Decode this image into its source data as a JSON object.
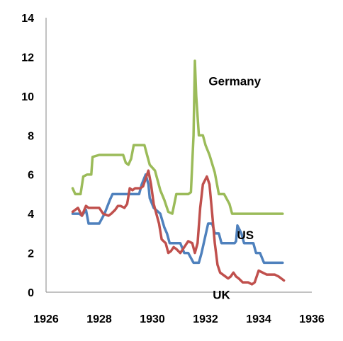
{
  "chart_data": {
    "type": "line",
    "title": "",
    "xlabel": "",
    "ylabel": "",
    "xlim": [
      1926,
      1936
    ],
    "ylim": [
      0,
      14
    ],
    "x_ticks": [
      "1926",
      "1928",
      "1930",
      "1932",
      "1934",
      "1936"
    ],
    "y_ticks": [
      "0",
      "2",
      "4",
      "6",
      "8",
      "10",
      "12",
      "14"
    ],
    "grid": false,
    "legend": "none",
    "series": [
      {
        "name": "Germany",
        "color": "#9BBB59",
        "x": [
          1927.0,
          1927.1,
          1927.3,
          1927.4,
          1927.55,
          1927.7,
          1927.75,
          1928.0,
          1928.9,
          1929.0,
          1929.1,
          1929.2,
          1929.3,
          1929.6,
          1929.7,
          1929.8,
          1929.9,
          1930.1,
          1930.3,
          1930.45,
          1930.6,
          1930.75,
          1930.9,
          1931.35,
          1931.45,
          1931.55,
          1931.6,
          1931.65,
          1931.75,
          1931.9,
          1932.0,
          1932.15,
          1932.35,
          1932.5,
          1932.7,
          1932.9,
          1933.0,
          1934.9
        ],
        "values": [
          5.3,
          5.0,
          5.0,
          5.9,
          6.0,
          6.0,
          6.9,
          7.0,
          7.0,
          6.6,
          6.5,
          6.8,
          7.5,
          7.5,
          7.5,
          7.0,
          6.5,
          6.2,
          5.2,
          4.7,
          4.1,
          4.0,
          5.0,
          5.0,
          5.1,
          8.0,
          11.8,
          10.0,
          8.0,
          8.0,
          7.5,
          7.0,
          6.1,
          5.0,
          5.0,
          4.5,
          4.0,
          4.0
        ]
      },
      {
        "name": "US",
        "color": "#4F81BD",
        "x": [
          1927.0,
          1927.25,
          1927.35,
          1927.5,
          1927.6,
          1927.9,
          1928.0,
          1928.2,
          1928.4,
          1928.5,
          1929.35,
          1929.5,
          1929.6,
          1929.75,
          1929.85,
          1929.9,
          1930.05,
          1930.3,
          1930.45,
          1930.55,
          1930.65,
          1930.8,
          1931.05,
          1931.2,
          1931.35,
          1931.55,
          1931.65,
          1931.75,
          1931.85,
          1932.1,
          1932.25,
          1932.35,
          1932.5,
          1932.6,
          1933.1,
          1933.15,
          1933.2,
          1933.35,
          1933.45,
          1933.6,
          1933.8,
          1933.9,
          1934.05,
          1934.2,
          1934.9
        ],
        "values": [
          4.0,
          4.0,
          3.9,
          4.2,
          3.5,
          3.5,
          3.5,
          4.0,
          4.7,
          5.0,
          5.0,
          5.0,
          5.5,
          6.0,
          5.5,
          4.8,
          4.3,
          4.0,
          3.3,
          3.0,
          2.5,
          2.5,
          2.5,
          2.0,
          2.0,
          1.5,
          1.5,
          1.5,
          2.0,
          3.5,
          3.5,
          3.0,
          3.0,
          2.5,
          2.5,
          2.6,
          3.4,
          3.0,
          2.5,
          2.5,
          2.5,
          2.0,
          2.0,
          1.5,
          1.5
        ]
      },
      {
        "name": "UK",
        "color": "#C0504D",
        "x": [
          1927.0,
          1927.2,
          1927.35,
          1927.5,
          1927.6,
          1928.0,
          1928.15,
          1928.35,
          1928.45,
          1928.6,
          1928.7,
          1928.8,
          1928.95,
          1929.05,
          1929.15,
          1929.25,
          1929.35,
          1929.55,
          1929.65,
          1929.75,
          1929.85,
          1929.95,
          1930.05,
          1930.15,
          1930.25,
          1930.35,
          1930.5,
          1930.6,
          1930.7,
          1930.8,
          1930.9,
          1931.05,
          1931.2,
          1931.35,
          1931.5,
          1931.6,
          1931.7,
          1931.8,
          1931.9,
          1932.05,
          1932.15,
          1932.25,
          1932.35,
          1932.45,
          1932.55,
          1932.75,
          1932.85,
          1932.95,
          1933.05,
          1933.15,
          1933.25,
          1933.4,
          1933.6,
          1933.75,
          1933.85,
          1934.0,
          1934.3,
          1934.6,
          1934.75,
          1934.85,
          1934.95
        ],
        "values": [
          4.1,
          4.3,
          3.9,
          4.4,
          4.3,
          4.3,
          4.0,
          3.9,
          4.0,
          4.2,
          4.4,
          4.4,
          4.3,
          4.5,
          5.3,
          5.2,
          5.3,
          5.3,
          5.4,
          5.8,
          6.2,
          5.5,
          4.5,
          4.0,
          3.5,
          2.7,
          2.5,
          2.0,
          2.1,
          2.3,
          2.2,
          2.0,
          2.3,
          2.6,
          2.5,
          2.0,
          2.5,
          4.3,
          5.5,
          5.9,
          5.5,
          4.0,
          2.5,
          1.4,
          1.0,
          0.8,
          0.7,
          0.8,
          1.0,
          0.8,
          0.7,
          0.5,
          0.5,
          0.4,
          0.5,
          1.1,
          0.9,
          0.9,
          0.8,
          0.7,
          0.6
        ]
      }
    ],
    "annotations": [
      {
        "text": "Germany",
        "x": 1933.1,
        "y": 10.55
      },
      {
        "text": "US",
        "x": 1933.5,
        "y": 2.7
      },
      {
        "text": "UK",
        "x": 1932.6,
        "y": -0.35
      }
    ]
  }
}
